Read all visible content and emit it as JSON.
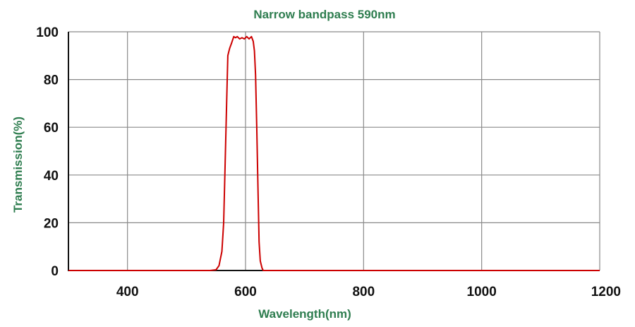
{
  "colors": {
    "title": "#2e7d4f",
    "axis_label": "#2e7d4f",
    "series": "#cc0000",
    "grid": "#8a8a8a"
  },
  "chart_data": {
    "type": "line",
    "title": "Narrow bandpass 590nm",
    "xlabel": "Wavelength(nm)",
    "ylabel": "Transmission(%)",
    "xlim": [
      300,
      1200
    ],
    "ylim": [
      0,
      100
    ],
    "xticks": [
      400,
      600,
      800,
      1000,
      1200
    ],
    "yticks": [
      0,
      20,
      40,
      60,
      80,
      100
    ],
    "xtick_labels": [
      "400",
      "600",
      "800",
      "1000",
      "1200"
    ],
    "ytick_labels": [
      "0",
      "20",
      "40",
      "60",
      "80",
      "100"
    ],
    "grid": true,
    "legend": "none",
    "series": [
      {
        "x": [
          300,
          400,
          500,
          540,
          550,
          555,
          560,
          563,
          565,
          568,
          570,
          573,
          576,
          580,
          583,
          586,
          590,
          594,
          598,
          602,
          606,
          610,
          613,
          615,
          617,
          619,
          621,
          623,
          625,
          628,
          630,
          640,
          700,
          800,
          900,
          1000,
          1100,
          1200
        ],
        "y": [
          0,
          0,
          0,
          0,
          0.3,
          2,
          8,
          20,
          40,
          70,
          90,
          93,
          95,
          98,
          97.5,
          98,
          97,
          97.5,
          97,
          98,
          97,
          98,
          96,
          92,
          82,
          60,
          35,
          12,
          4,
          1,
          0,
          0,
          0,
          0,
          0,
          0,
          0,
          0
        ]
      }
    ]
  }
}
